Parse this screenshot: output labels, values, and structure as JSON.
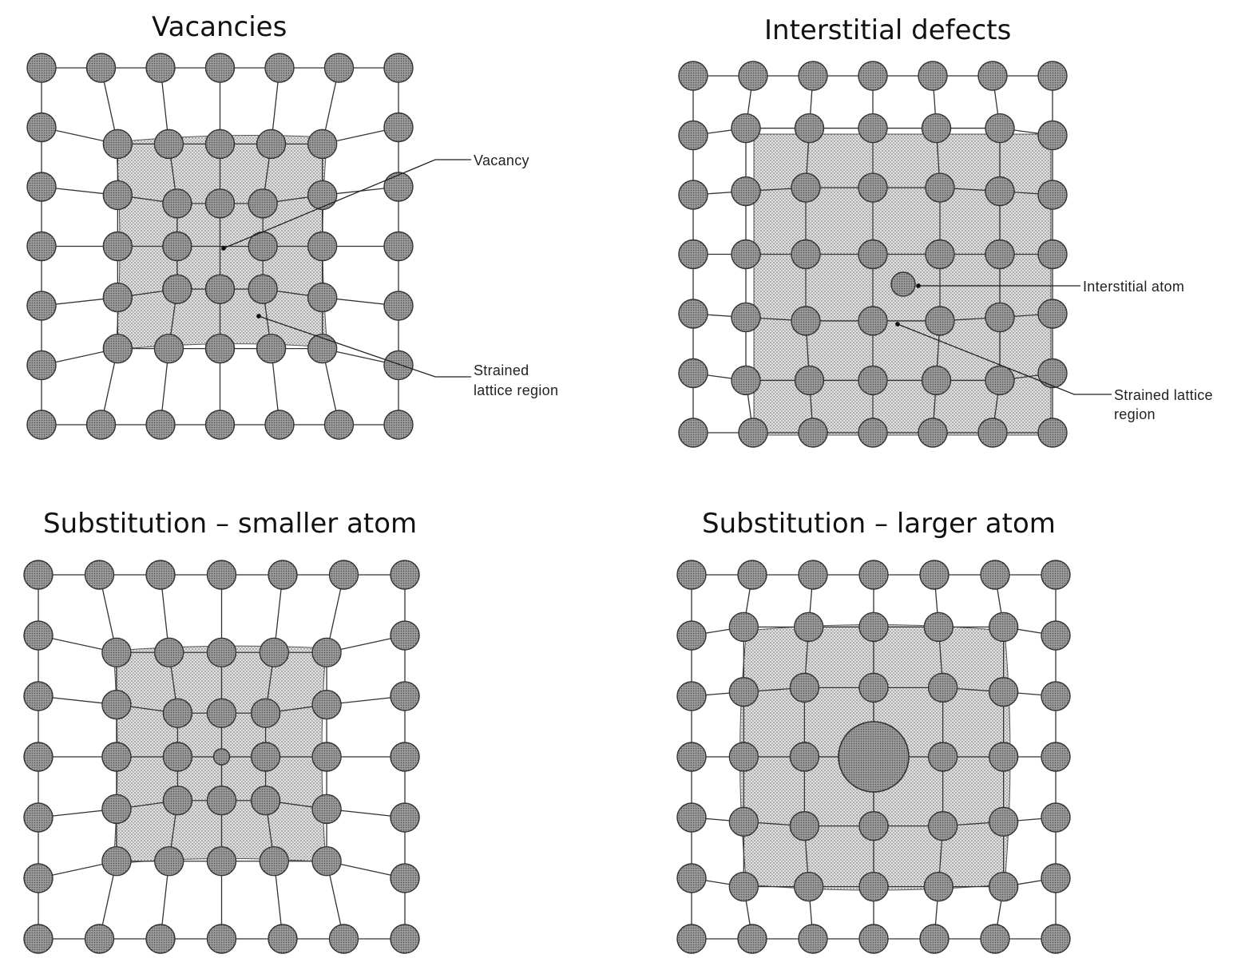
{
  "panels": [
    {
      "id": "vacancies",
      "title": "Vacancies",
      "labels": {
        "vacancy": "Vacancy",
        "strained_1": "Strained",
        "strained_2": "lattice region"
      }
    },
    {
      "id": "interstitial",
      "title": "Interstitial defects",
      "labels": {
        "interstitial_atom": "Interstitial atom",
        "strained_1": "Strained lattice",
        "strained_2": "region"
      }
    },
    {
      "id": "sub-small",
      "title": "Substitution – smaller atom"
    },
    {
      "id": "sub-large",
      "title": "Substitution – larger atom"
    }
  ],
  "colors": {
    "atom_fill": "#8a8a8a",
    "atom_stroke": "#333333",
    "strained_region": "#d9d9d9",
    "bond": "#333333",
    "background": "#ffffff"
  },
  "icons": {
    "atom": "circle",
    "strain_pattern": "dotted-stipple"
  }
}
